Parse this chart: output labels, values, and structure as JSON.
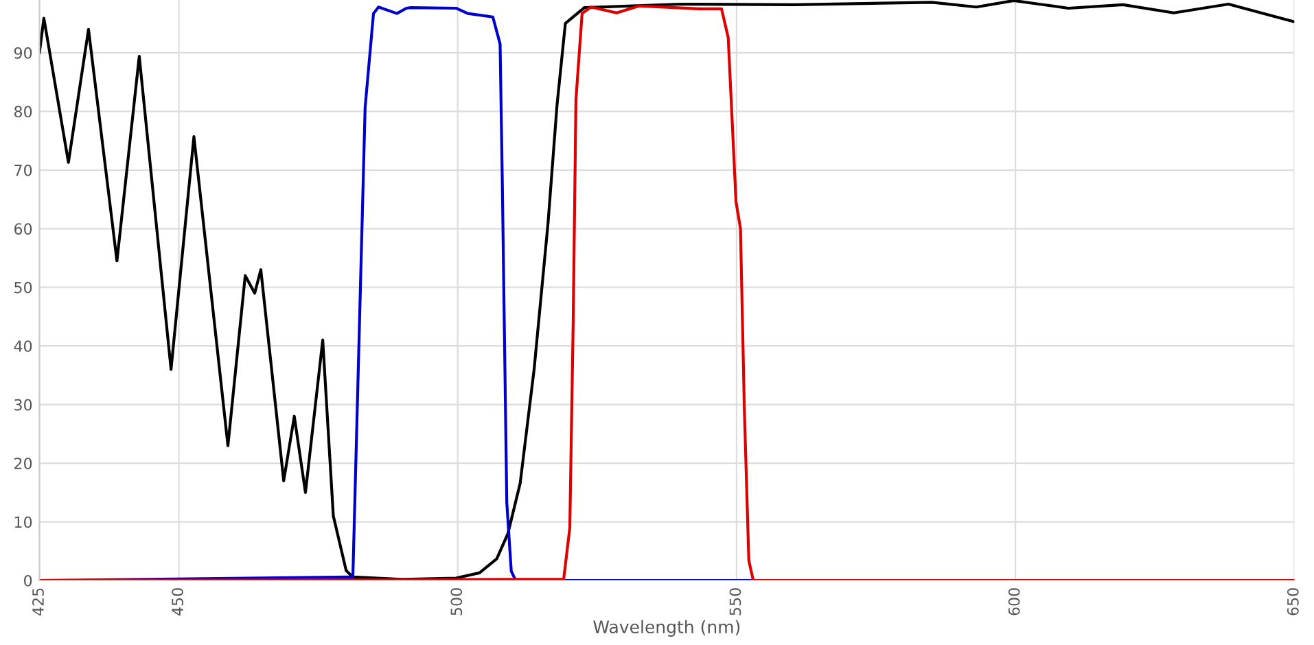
{
  "chart_data": {
    "type": "line",
    "xlabel": "Wavelength (nm)",
    "xlim": [
      425,
      650
    ],
    "ylim": [
      0,
      99
    ],
    "xticks": [
      425,
      450,
      500,
      550,
      600,
      650
    ],
    "yticks": [
      0,
      10,
      20,
      30,
      40,
      50,
      60,
      70,
      80,
      90
    ],
    "grid": true,
    "marker": "none",
    "line_style": "solid",
    "series": [
      {
        "color": "#000000",
        "x": [
          425,
          425.8,
          430.2,
          433.8,
          438.9,
          442.9,
          448.6,
          452.7,
          458.8,
          461.9,
          463.6,
          464.7,
          468.8,
          470.7,
          472.7,
          475.8,
          477.7,
          480,
          481.2,
          490,
          499.7,
          503.9,
          507,
          509,
          511.2,
          513.7,
          516.2,
          517.8,
          519.3,
          522.7,
          540,
          560.4,
          585,
          593,
          599.7,
          609.5,
          619.3,
          628.4,
          638.2,
          649.2,
          650
        ],
        "values": [
          90,
          95.9,
          71.3,
          94,
          54.5,
          89.4,
          36,
          75.7,
          23,
          52,
          49,
          53,
          17,
          28,
          15,
          41,
          11,
          1.7,
          0.6,
          0.2,
          0.4,
          1.3,
          3.7,
          8,
          16.6,
          36,
          61,
          81,
          95,
          97.7,
          98.3,
          98.2,
          98.6,
          97.8,
          98.9,
          97.6,
          98.2,
          96.8,
          98.3,
          95.5,
          95.3
        ]
      },
      {
        "color": "#0000cc",
        "x": [
          425,
          481.2,
          483.4,
          484.9,
          485.8,
          489.1,
          490.8,
          491.6,
          499.7,
          501.8,
          506.3,
          507.6,
          508,
          508.8,
          509.6,
          510.4,
          650
        ],
        "values": [
          0,
          0.6,
          80.7,
          96.7,
          97.8,
          96.7,
          97.6,
          97.7,
          97.6,
          96.7,
          96.1,
          91.5,
          67.8,
          13.3,
          1.6,
          0,
          0
        ]
      },
      {
        "color": "#dd0000",
        "x": [
          425,
          519,
          520.1,
          520.7,
          521.2,
          522.3,
          523.9,
          528.5,
          532.6,
          543.2,
          547.3,
          548.5,
          549.9,
          550.7,
          551.4,
          552.2,
          553,
          650
        ],
        "values": [
          0,
          0.2,
          9,
          43.7,
          82,
          96.7,
          97.8,
          96.8,
          98,
          97.5,
          97.5,
          92.6,
          64.6,
          60,
          29,
          3.4,
          0,
          0
        ]
      }
    ]
  }
}
